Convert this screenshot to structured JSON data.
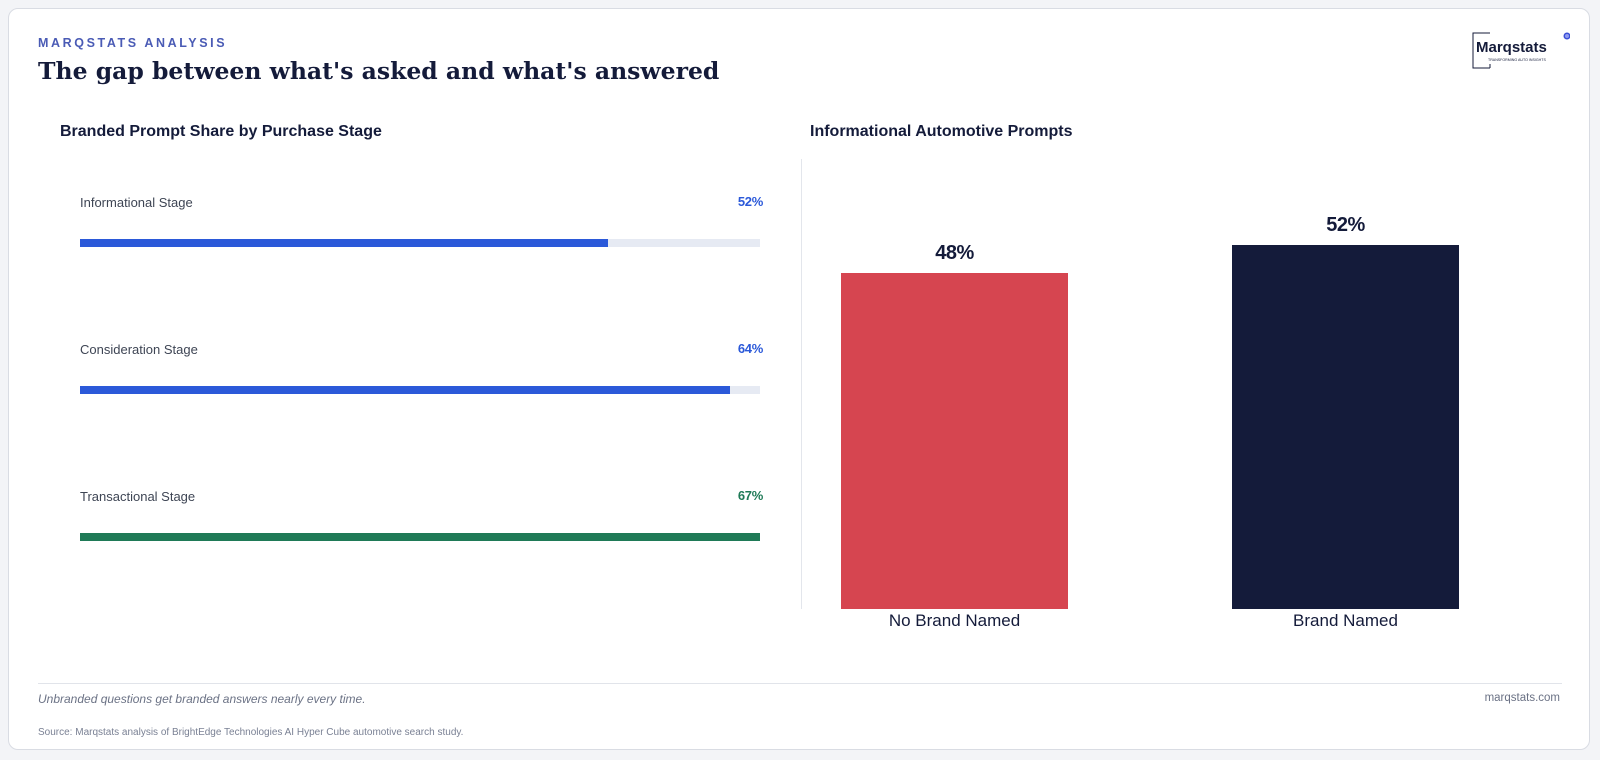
{
  "header": {
    "eyebrow": "MARQSTATS ANALYSIS",
    "title": "The gap between what's asked and what's answered",
    "logo_text": "Marqstats",
    "logo_tagline": "TRANSFORMING AUTO INSIGHTS"
  },
  "colors": {
    "accent_blue": "#2b59d9",
    "accent_green": "#1f7a57",
    "red": "#d64550",
    "navy": "#141b3a",
    "track": "#e6eaf3"
  },
  "chart_data": [
    {
      "type": "bar",
      "orientation": "horizontal",
      "title": "Branded Prompt Share by Purchase Stage",
      "categories": [
        "Informational Stage",
        "Consideration Stage",
        "Transactional Stage"
      ],
      "values": [
        52,
        64,
        67
      ],
      "value_labels": [
        "52%",
        "64%",
        "67%"
      ],
      "colors": [
        "#2b59d9",
        "#2b59d9",
        "#1f7a57"
      ],
      "xlim": [
        0,
        67
      ]
    },
    {
      "type": "bar",
      "title": "Informational Automotive Prompts",
      "categories": [
        "No Brand Named",
        "Brand Named"
      ],
      "values": [
        48,
        52
      ],
      "value_labels": [
        "48%",
        "52%"
      ],
      "colors": [
        "#d64550",
        "#141b3a"
      ],
      "ylim": [
        0,
        60
      ]
    }
  ],
  "footer": {
    "takeaway": "Unbranded questions get branded answers nearly every time.",
    "site": "marqstats.com",
    "source": "Source: Marqstats analysis of BrightEdge Technologies AI Hyper Cube automotive search study."
  }
}
